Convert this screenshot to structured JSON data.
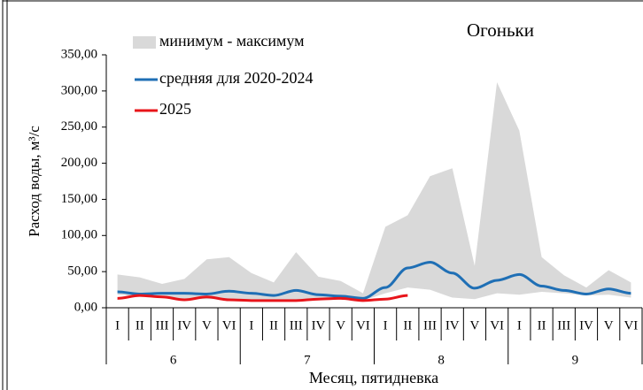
{
  "chart_data": {
    "type": "line",
    "title": "Огоньки",
    "y_label": "Расход воды, м³/с",
    "x_label": "Месяц, пятидневка",
    "categories": [
      "I",
      "II",
      "III",
      "IV",
      "V",
      "VI",
      "I",
      "II",
      "III",
      "IV",
      "V",
      "VI",
      "I",
      "II",
      "III",
      "IV",
      "V",
      "VI",
      "I",
      "II",
      "III",
      "IV",
      "V",
      "VI"
    ],
    "months": [
      "6",
      "7",
      "8",
      "9"
    ],
    "ylim": [
      0,
      350
    ],
    "yticks": [
      {
        "value": 0,
        "label": "0,00"
      },
      {
        "value": 50,
        "label": "50,00"
      },
      {
        "value": 100,
        "label": "100,00"
      },
      {
        "value": 150,
        "label": "150,00"
      },
      {
        "value": 200,
        "label": "200,00"
      },
      {
        "value": 250,
        "label": "250,00"
      },
      {
        "value": 300,
        "label": "300,00"
      },
      {
        "value": 350,
        "label": "350,00"
      }
    ],
    "series": [
      {
        "name": "минимум - максимум",
        "kind": "band",
        "color": "#d9d9d9",
        "low": [
          18,
          16,
          15,
          12,
          12,
          12,
          10,
          10,
          10,
          12,
          12,
          10,
          20,
          28,
          25,
          14,
          12,
          20,
          18,
          22,
          20,
          17,
          18,
          14
        ],
        "high": [
          46,
          42,
          33,
          40,
          67,
          70,
          48,
          35,
          77,
          43,
          37,
          20,
          112,
          128,
          182,
          193,
          58,
          312,
          245,
          70,
          45,
          28,
          52,
          35
        ]
      },
      {
        "name": "средняя для 2020-2024",
        "color": "#1f6fb5",
        "values": [
          22,
          19,
          20,
          20,
          19,
          23,
          20,
          17,
          24,
          18,
          16,
          13,
          28,
          55,
          63,
          48,
          27,
          38,
          46,
          30,
          24,
          19,
          26,
          20
        ]
      },
      {
        "name": "2025",
        "color": "#e8141a",
        "values": [
          13,
          17,
          15,
          11,
          15,
          11,
          10,
          10,
          10,
          12,
          13,
          10,
          12,
          17,
          null,
          null,
          null,
          null,
          null,
          null,
          null,
          null,
          null,
          null
        ]
      }
    ]
  }
}
